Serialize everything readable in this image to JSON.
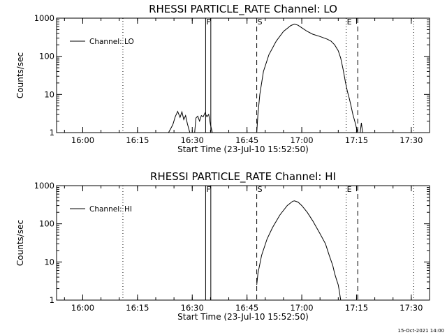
{
  "footer": {
    "timestamp": "15-Oct-2021 14:00"
  },
  "chart_data": [
    {
      "type": "line",
      "title": "RHESSI PARTICLE_RATE Channel: LO",
      "xlabel": "Start Time (23-Jul-10 15:52:50)",
      "ylabel": "Counts/sec",
      "y_scale": "log",
      "ylim": [
        1,
        1000
      ],
      "xlim": [
        "15:52:50",
        "17:35:00"
      ],
      "x_ticks": [
        "16:00",
        "16:15",
        "16:30",
        "16:45",
        "17:00",
        "17:15",
        "17:30"
      ],
      "y_ticks": [
        "1",
        "10",
        "100",
        "1000"
      ],
      "legend": {
        "position": "top-left",
        "entries": [
          "Channel: LO"
        ]
      },
      "grid": false,
      "markers": [
        {
          "label": "F",
          "x": "16:33:40",
          "style": "solid"
        },
        {
          "label": "",
          "x": "16:35:05",
          "style": "solid"
        },
        {
          "label": "S",
          "x": "16:47:40",
          "style": "dashed"
        },
        {
          "label": "E",
          "x": "17:12:10",
          "style": "dotted"
        },
        {
          "label": "",
          "x": "17:15:20",
          "style": "dashed"
        },
        {
          "label": "",
          "x": "16:11:00",
          "style": "dotted"
        },
        {
          "label": "",
          "x": "17:30:40",
          "style": "dotted"
        }
      ],
      "series": [
        {
          "name": "Channel: LO",
          "segments": [
            [
              [
                "16:23:30",
                1
              ],
              [
                "16:24:40",
                1.6
              ],
              [
                "16:25:20",
                2.6
              ],
              [
                "16:26:00",
                3.6
              ],
              [
                "16:26:40",
                2.5
              ],
              [
                "16:27:10",
                3.5
              ],
              [
                "16:27:40",
                2.2
              ],
              [
                "16:28:10",
                2.8
              ],
              [
                "16:28:40",
                1.7
              ],
              [
                "16:29:20",
                1
              ]
            ],
            [
              [
                "16:30:40",
                1
              ],
              [
                "16:31:00",
                2.4
              ],
              [
                "16:31:30",
                2.7
              ],
              [
                "16:32:00",
                2.0
              ],
              [
                "16:32:30",
                2.8
              ],
              [
                "16:33:00",
                2.6
              ],
              [
                "16:33:30",
                3.3
              ],
              [
                "16:34:00",
                2.6
              ],
              [
                "16:34:30",
                3.0
              ],
              [
                "16:35:00",
                1.6
              ],
              [
                "16:35:30",
                1
              ]
            ],
            [
              [
                "16:47:40",
                1
              ],
              [
                "16:48:00",
                3
              ],
              [
                "16:48:30",
                10
              ],
              [
                "16:49:30",
                40
              ],
              [
                "16:51:00",
                110
              ],
              [
                "16:53:00",
                250
              ],
              [
                "16:55:00",
                450
              ],
              [
                "16:57:00",
                640
              ],
              [
                "16:58:00",
                700
              ],
              [
                "16:59:00",
                650
              ],
              [
                "17:00:00",
                560
              ],
              [
                "17:01:30",
                450
              ],
              [
                "17:03:00",
                380
              ],
              [
                "17:05:00",
                330
              ],
              [
                "17:07:00",
                280
              ],
              [
                "17:08:00",
                250
              ],
              [
                "17:09:00",
                200
              ],
              [
                "17:10:00",
                140
              ],
              [
                "17:10:40",
                90
              ],
              [
                "17:11:20",
                45
              ],
              [
                "17:12:00",
                20
              ],
              [
                "17:12:30",
                12
              ],
              [
                "17:13:00",
                8
              ],
              [
                "17:13:30",
                5
              ],
              [
                "17:14:00",
                3
              ],
              [
                "17:14:30",
                2
              ],
              [
                "17:15:00",
                1.3
              ],
              [
                "17:15:20",
                1
              ]
            ],
            [
              [
                "17:16:00",
                1
              ],
              [
                "17:16:20",
                1.8
              ],
              [
                "17:16:40",
                1
              ]
            ]
          ]
        }
      ]
    },
    {
      "type": "line",
      "title": "RHESSI PARTICLE_RATE Channel: HI",
      "xlabel": "Start Time (23-Jul-10 15:52:50)",
      "ylabel": "Counts/sec",
      "y_scale": "log",
      "ylim": [
        1,
        1000
      ],
      "xlim": [
        "15:52:50",
        "17:35:00"
      ],
      "x_ticks": [
        "16:00",
        "16:15",
        "16:30",
        "16:45",
        "17:00",
        "17:15",
        "17:30"
      ],
      "y_ticks": [
        "1",
        "10",
        "100",
        "1000"
      ],
      "legend": {
        "position": "top-left",
        "entries": [
          "Channel: HI"
        ]
      },
      "grid": false,
      "markers": [
        {
          "label": "F",
          "x": "16:33:40",
          "style": "solid"
        },
        {
          "label": "",
          "x": "16:35:05",
          "style": "solid"
        },
        {
          "label": "S",
          "x": "16:47:40",
          "style": "dashed"
        },
        {
          "label": "E",
          "x": "17:12:10",
          "style": "dotted"
        },
        {
          "label": "",
          "x": "17:15:20",
          "style": "dashed"
        },
        {
          "label": "",
          "x": "16:11:00",
          "style": "dotted"
        },
        {
          "label": "",
          "x": "17:30:40",
          "style": "dotted"
        }
      ],
      "series": [
        {
          "name": "Channel: HI",
          "segments": [
            [
              [
                "16:47:40",
                2.5
              ],
              [
                "16:48:00",
                5
              ],
              [
                "16:49:00",
                15
              ],
              [
                "16:50:30",
                40
              ],
              [
                "16:52:00",
                80
              ],
              [
                "16:54:00",
                170
              ],
              [
                "16:56:00",
                300
              ],
              [
                "16:57:30",
                390
              ],
              [
                "16:58:00",
                400
              ],
              [
                "16:59:00",
                370
              ],
              [
                "17:00:00",
                300
              ],
              [
                "17:01:30",
                200
              ],
              [
                "17:03:00",
                120
              ],
              [
                "17:05:00",
                55
              ],
              [
                "17:06:30",
                30
              ],
              [
                "17:07:30",
                15
              ],
              [
                "17:08:30",
                8
              ],
              [
                "17:09:00",
                5
              ],
              [
                "17:09:30",
                3.5
              ],
              [
                "17:10:00",
                2.5
              ],
              [
                "17:10:20",
                1.6
              ],
              [
                "17:10:40",
                1
              ]
            ]
          ]
        }
      ]
    }
  ]
}
